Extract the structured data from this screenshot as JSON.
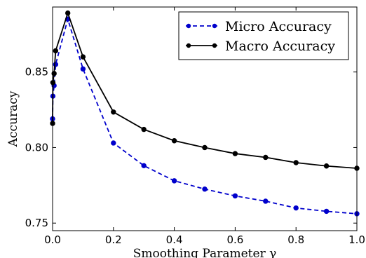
{
  "chart_data": {
    "type": "line",
    "xlabel": "Smoothing Parameter γ",
    "ylabel": "Accuracy",
    "xlim": [
      0.0,
      1.0
    ],
    "ylim": [
      0.745,
      0.893
    ],
    "x_ticks": [
      "0.0",
      "0.2",
      "0.4",
      "0.6",
      "0.8",
      "1.0"
    ],
    "y_ticks": [
      "0.75",
      "0.80",
      "0.85"
    ],
    "grid": false,
    "legend_position": "top-right",
    "x": [
      0.0,
      0.001,
      0.005,
      0.01,
      0.05,
      0.1,
      0.2,
      0.3,
      0.4,
      0.5,
      0.6,
      0.7,
      0.8,
      0.9,
      1.0
    ],
    "series": [
      {
        "name": "Micro Accuracy",
        "color": "#0000cc",
        "line_style": "dashed",
        "marker": "circle",
        "values": [
          0.819,
          0.834,
          0.841,
          0.855,
          0.885,
          0.852,
          0.803,
          0.788,
          0.778,
          0.7725,
          0.768,
          0.7645,
          0.76,
          0.7578,
          0.7562
        ]
      },
      {
        "name": "Macro Accuracy",
        "color": "#000000",
        "line_style": "solid",
        "marker": "circle",
        "values": [
          0.816,
          0.843,
          0.849,
          0.864,
          0.889,
          0.86,
          0.8235,
          0.812,
          0.8045,
          0.8,
          0.796,
          0.7935,
          0.79,
          0.7878,
          0.7863
        ]
      }
    ]
  }
}
